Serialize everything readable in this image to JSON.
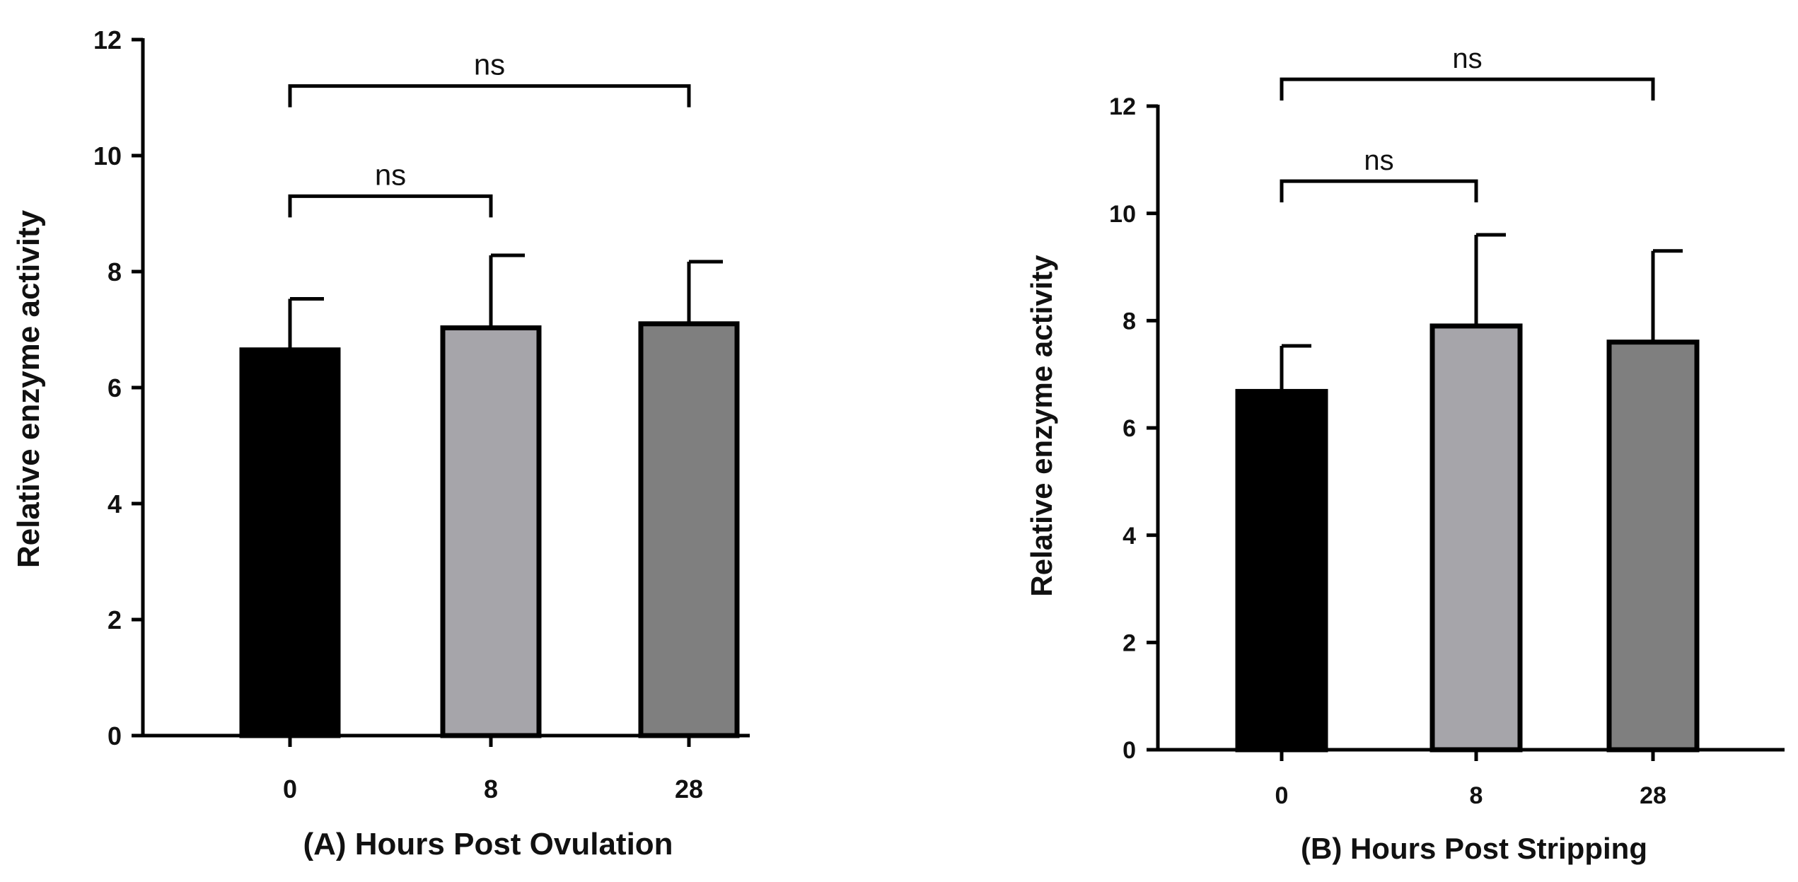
{
  "chart_data": [
    {
      "panel": "A",
      "type": "bar",
      "xlabel": "(A) Hours Post Ovulation",
      "ylabel": "Relative enzyme activity",
      "categories": [
        "0",
        "8",
        "28"
      ],
      "values": [
        6.65,
        7.03,
        7.1
      ],
      "errors": [
        0.88,
        1.25,
        1.07
      ],
      "bar_colors": [
        "#000000",
        "#a6a5aa",
        "#7f7f7f"
      ],
      "ylim": [
        0,
        12
      ],
      "yticks": [
        "0",
        "2",
        "4",
        "6",
        "8",
        "10",
        "12"
      ],
      "significance": [
        {
          "from": 0,
          "to": 1,
          "label": "ns",
          "level": 9.3
        },
        {
          "from": 0,
          "to": 2,
          "label": "ns",
          "level": 11.2
        }
      ]
    },
    {
      "panel": "B",
      "type": "bar",
      "xlabel": "(B) Hours Post Stripping",
      "ylabel": "Relative enzyme activity",
      "categories": [
        "0",
        "8",
        "28"
      ],
      "values": [
        6.68,
        7.9,
        7.6
      ],
      "errors": [
        0.85,
        1.7,
        1.7
      ],
      "bar_colors": [
        "#000000",
        "#a6a5aa",
        "#7f7f7f"
      ],
      "ylim": [
        0,
        12
      ],
      "yticks": [
        "0",
        "2",
        "4",
        "6",
        "8",
        "10",
        "12"
      ],
      "significance": [
        {
          "from": 0,
          "to": 1,
          "label": "ns",
          "level": 10.6
        },
        {
          "from": 0,
          "to": 2,
          "label": "ns",
          "level": 12.5
        }
      ]
    }
  ]
}
